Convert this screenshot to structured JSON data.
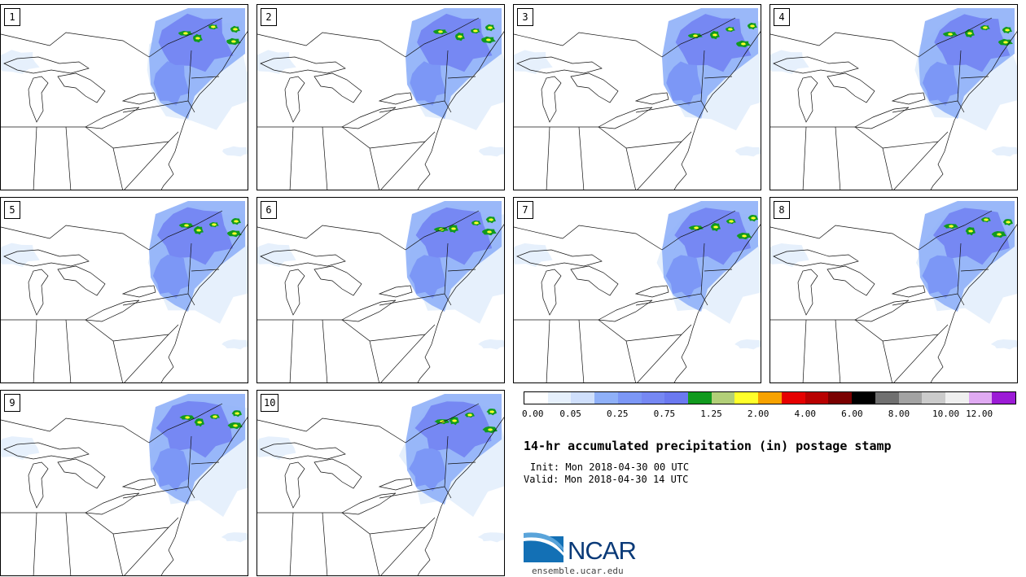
{
  "panels": [
    {
      "label": "1",
      "variant": 0
    },
    {
      "label": "2",
      "variant": 1
    },
    {
      "label": "3",
      "variant": 2
    },
    {
      "label": "4",
      "variant": 3
    },
    {
      "label": "5",
      "variant": 4
    },
    {
      "label": "6",
      "variant": 5
    },
    {
      "label": "7",
      "variant": 6
    },
    {
      "label": "8",
      "variant": 7
    },
    {
      "label": "9",
      "variant": 8
    },
    {
      "label": "10",
      "variant": 9
    }
  ],
  "colorbar": {
    "colors": [
      "#ffffff",
      "#e6f0fc",
      "#cfdffc",
      "#8fb0f8",
      "#7c97f6",
      "#7688f3",
      "#6b79f0",
      "#119a1f",
      "#b2cf78",
      "#ffff2a",
      "#f7a200",
      "#e60000",
      "#b80000",
      "#7a0000",
      "#000000",
      "#707070",
      "#a3a3a3",
      "#cbcbcb",
      "#efefef",
      "#e0aaf2",
      "#9c1bd6"
    ],
    "tick_labels": [
      "0.00",
      "0.05",
      "0.25",
      "0.75",
      "1.25",
      "2.00",
      "4.00",
      "6.00",
      "8.00",
      "10.00",
      "12.00"
    ]
  },
  "title": "14-hr accumulated precipitation (in) postage stamp",
  "init": "Init: Mon 2018-04-30 00 UTC",
  "valid": "Valid: Mon 2018-04-30 14 UTC",
  "logo": {
    "text": "NCAR",
    "website": "ensemble.ucar.edu"
  }
}
